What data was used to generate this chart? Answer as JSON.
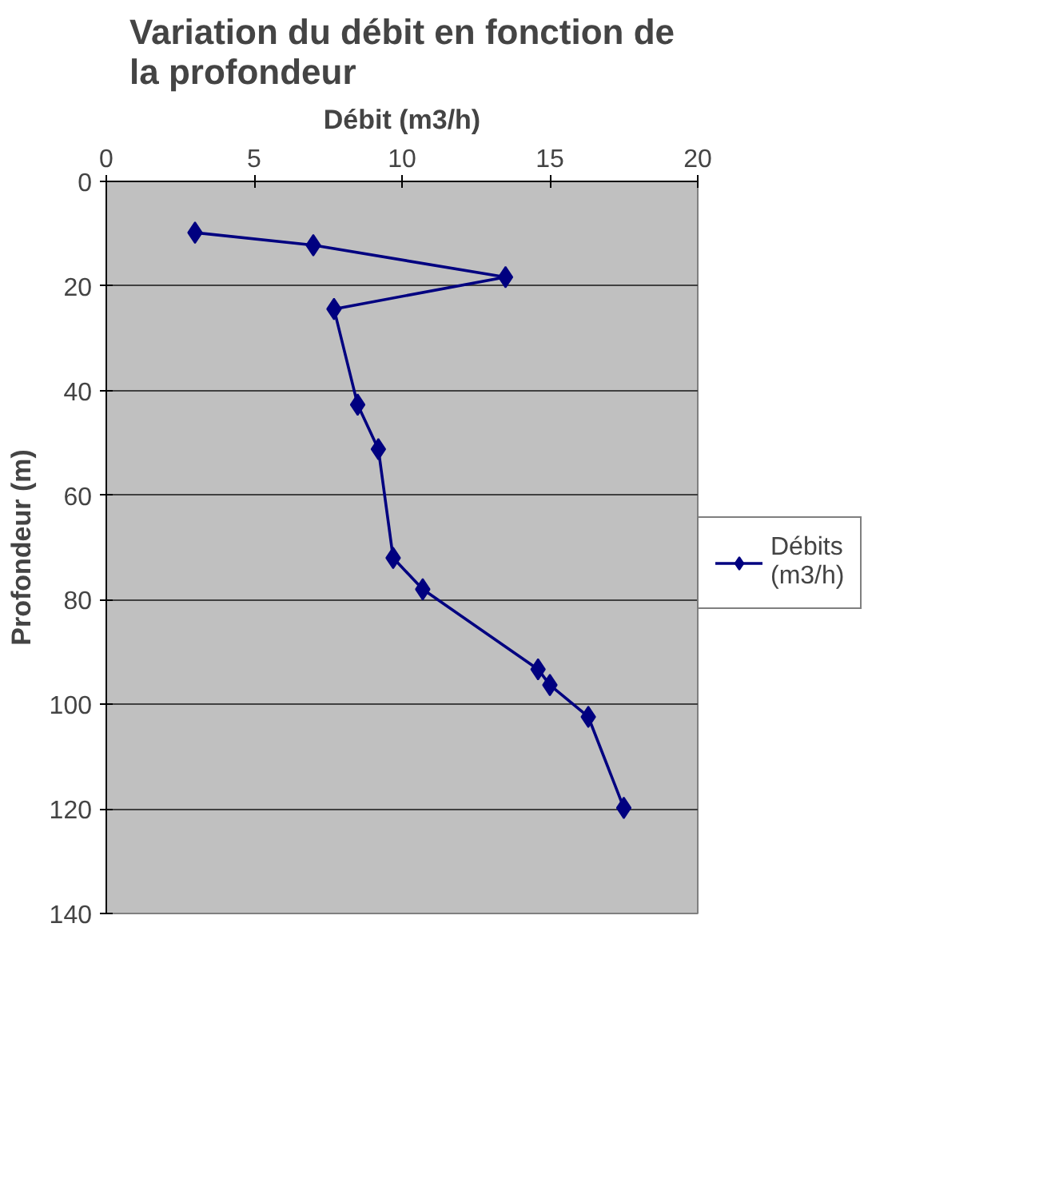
{
  "chart_data": {
    "type": "line",
    "title": "Variation du débit en fonction de\nla profondeur",
    "xlabel": "Débit (m3/h)",
    "ylabel": "Profondeur (m)",
    "series": [
      {
        "name": "Débits\n(m3/h)",
        "color": "#000080",
        "x": [
          3.0,
          7.0,
          13.5,
          7.7,
          8.5,
          9.2,
          9.7,
          10.7,
          14.6,
          15.0,
          16.3,
          17.5
        ],
        "values": [
          9.8,
          12.2,
          18.3,
          24.4,
          42.7,
          51.2,
          72,
          78,
          93.3,
          96.3,
          102.4,
          119.8
        ]
      }
    ],
    "xlim": [
      0,
      20
    ],
    "xticks": [
      0,
      5,
      10,
      15,
      20
    ],
    "ylim": [
      140,
      0
    ],
    "yticks": [
      0,
      20,
      40,
      60,
      80,
      100,
      120,
      140
    ],
    "grid": "y",
    "legend": "right",
    "marker": "diamond",
    "line_style": "solid"
  }
}
